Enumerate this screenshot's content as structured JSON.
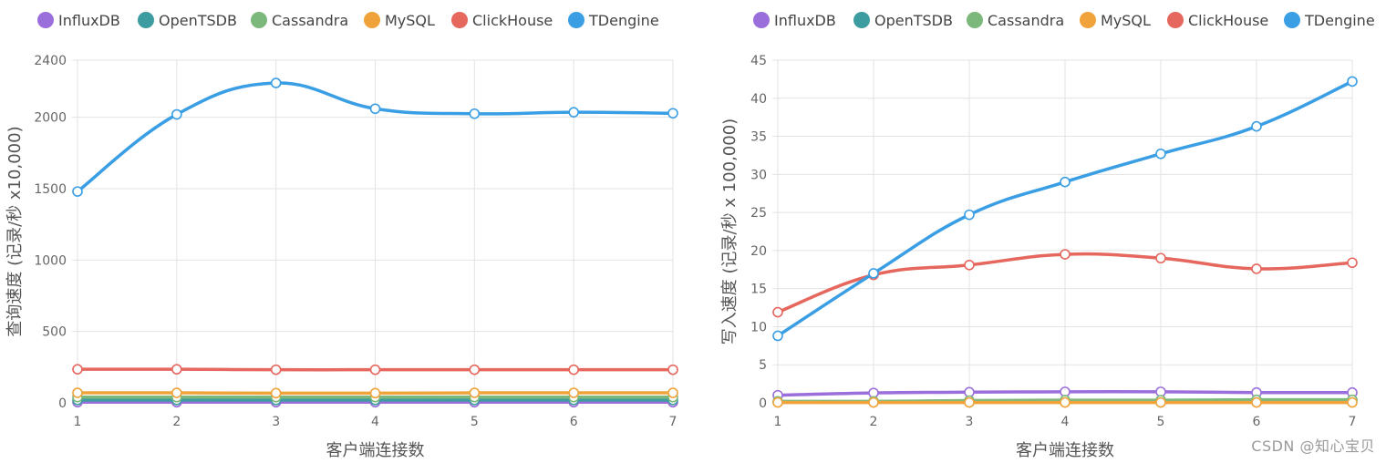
{
  "legend": [
    "InfluxDB",
    "OpenTSDB",
    "Cassandra",
    "MySQL",
    "ClickHouse",
    "TDengine"
  ],
  "colors": {
    "InfluxDB": "#9b6fdb",
    "OpenTSDB": "#3d9ca0",
    "Cassandra": "#7cb87c",
    "MySQL": "#f0a33a",
    "ClickHouse": "#e5675e",
    "TDengine": "#3a9ee4"
  },
  "watermark": "CSDN @知心宝贝",
  "chart_data": [
    {
      "type": "line",
      "xlabel": "客户端连接数",
      "ylabel": "查询速度 (记录/秒 x10,000)",
      "x": [
        1,
        2,
        3,
        4,
        5,
        6,
        7
      ],
      "ylim": [
        0,
        2400
      ],
      "yticks": [
        0,
        500,
        1000,
        1500,
        2000,
        2400
      ],
      "grid": true,
      "legend_position": "top-left",
      "series": [
        {
          "name": "InfluxDB",
          "values": [
            5,
            5,
            5,
            5,
            5,
            5,
            5
          ]
        },
        {
          "name": "OpenTSDB",
          "values": [
            20,
            20,
            20,
            20,
            20,
            20,
            20
          ]
        },
        {
          "name": "Cassandra",
          "values": [
            40,
            40,
            40,
            40,
            40,
            40,
            40
          ]
        },
        {
          "name": "MySQL",
          "values": [
            70,
            70,
            68,
            68,
            70,
            70,
            70
          ]
        },
        {
          "name": "ClickHouse",
          "values": [
            235,
            235,
            232,
            232,
            232,
            232,
            232
          ]
        },
        {
          "name": "TDengine",
          "values": [
            1480,
            2020,
            2240,
            2060,
            2025,
            2035,
            2028
          ]
        }
      ]
    },
    {
      "type": "line",
      "xlabel": "客户端连接数",
      "ylabel": "写入速度 (记录/秒 x 100,000)",
      "x": [
        1,
        2,
        3,
        4,
        5,
        6,
        7
      ],
      "ylim": [
        0,
        45
      ],
      "yticks": [
        0,
        5,
        10,
        15,
        20,
        25,
        30,
        35,
        40,
        45
      ],
      "grid": true,
      "legend_position": "top-left",
      "series": [
        {
          "name": "InfluxDB",
          "values": [
            1.0,
            1.3,
            1.4,
            1.45,
            1.45,
            1.35,
            1.35
          ]
        },
        {
          "name": "OpenTSDB",
          "values": [
            0.1,
            0.15,
            0.2,
            0.25,
            0.3,
            0.3,
            0.3
          ]
        },
        {
          "name": "Cassandra",
          "values": [
            0.2,
            0.2,
            0.3,
            0.35,
            0.35,
            0.4,
            0.4
          ]
        },
        {
          "name": "MySQL",
          "values": [
            0.05,
            0.05,
            0.05,
            0.05,
            0.05,
            0.05,
            0.05
          ]
        },
        {
          "name": "ClickHouse",
          "values": [
            11.9,
            16.8,
            18.1,
            19.5,
            19.0,
            17.6,
            18.4
          ]
        },
        {
          "name": "TDengine",
          "values": [
            8.8,
            17.0,
            24.7,
            29.0,
            32.7,
            36.3,
            42.2
          ]
        }
      ]
    }
  ]
}
